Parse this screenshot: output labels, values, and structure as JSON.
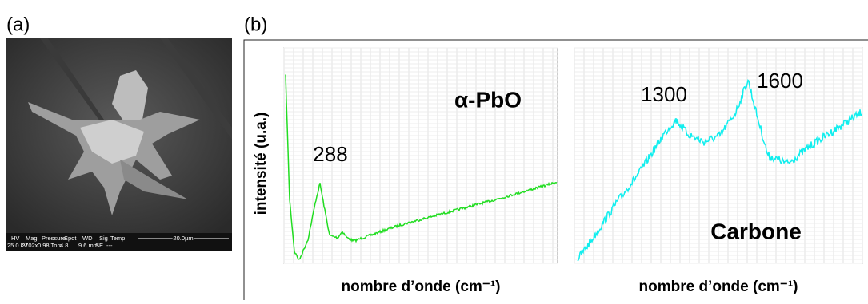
{
  "panel_a": {
    "label": "(a)",
    "info_bar": {
      "headers": [
        "HV",
        "Mag",
        "Pressure",
        "Spot",
        "WD",
        "Sig",
        "Temp"
      ],
      "values": [
        "25.0 kV",
        "2702x",
        "0.98 Torr",
        "4.8",
        "9.6 mm",
        "SE",
        "---"
      ],
      "scale": "20.0µm"
    }
  },
  "panel_b": {
    "label": "(b)",
    "y_label": "intensité (u.a.)",
    "plots": [
      {
        "title": "α-PbO",
        "annotations": [
          "288"
        ],
        "x_label": "nombre d’onde (cm⁻¹)"
      },
      {
        "title": "Carbone",
        "annotations": [
          "1300",
          "1600"
        ],
        "x_label": "nombre d’onde (cm⁻¹)"
      }
    ]
  }
}
